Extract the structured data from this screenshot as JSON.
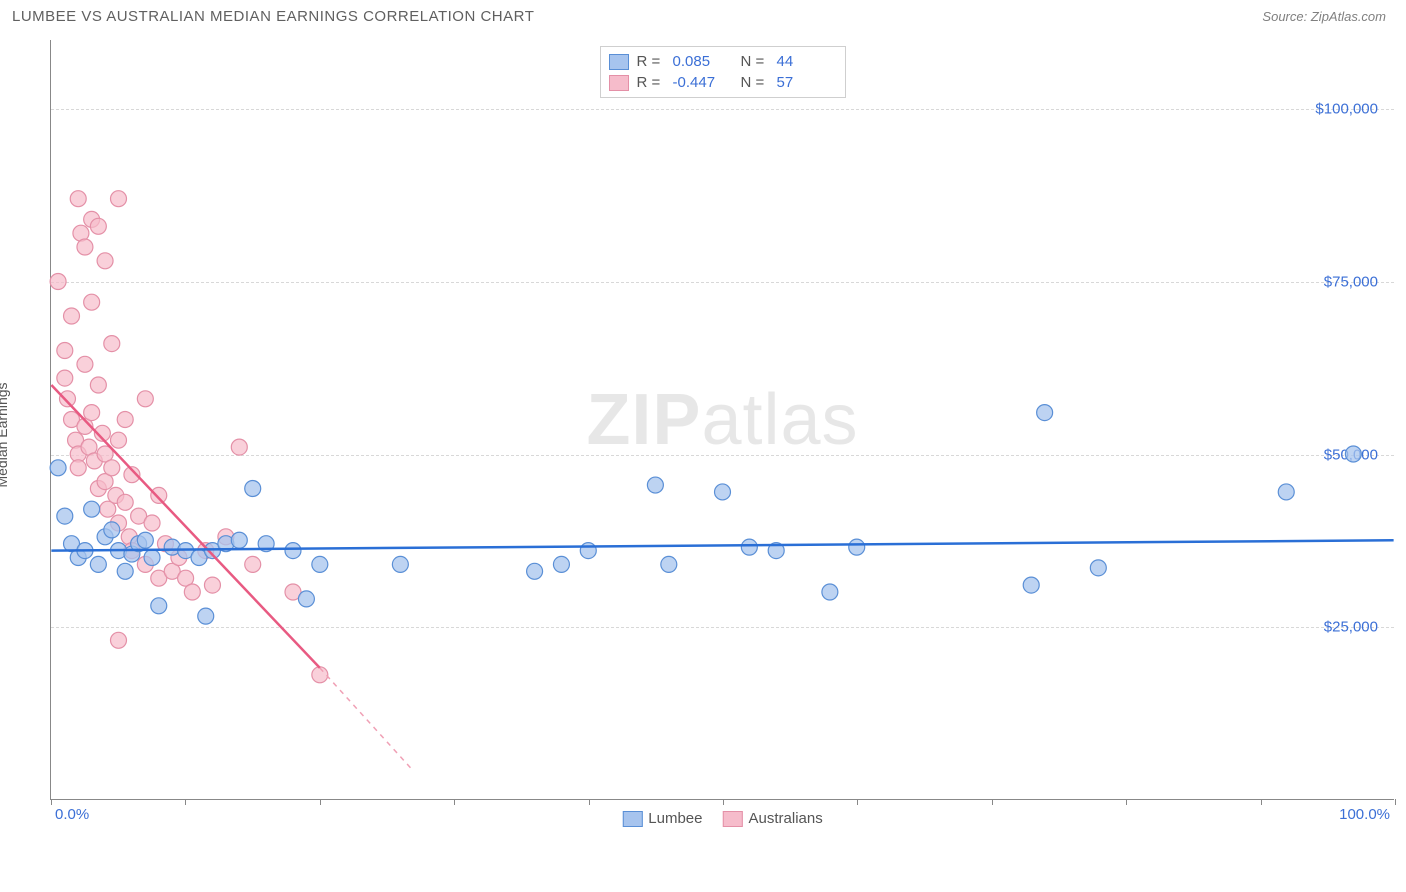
{
  "header": {
    "title": "LUMBEE VS AUSTRALIAN MEDIAN EARNINGS CORRELATION CHART",
    "source_label": "Source:",
    "source_value": "ZipAtlas.com"
  },
  "watermark": {
    "part1": "ZIP",
    "part2": "atlas"
  },
  "chart": {
    "type": "scatter",
    "ylabel": "Median Earnings",
    "background_color": "#ffffff",
    "grid_color": "#d8d8d8",
    "axis_color": "#888888",
    "xlim": [
      0,
      100
    ],
    "ylim": [
      0,
      110000
    ],
    "x_ticks_pct": [
      0,
      10,
      20,
      30,
      40,
      50,
      60,
      70,
      80,
      90,
      100
    ],
    "x_tick_labels": {
      "left": "0.0%",
      "right": "100.0%"
    },
    "y_gridlines": [
      25000,
      50000,
      75000,
      100000
    ],
    "y_tick_labels": [
      "$25,000",
      "$50,000",
      "$75,000",
      "$100,000"
    ],
    "legend_top": [
      {
        "swatch_fill": "#a7c4ee",
        "swatch_border": "#5a8fd6",
        "r_label": "R =",
        "r_value": "0.085",
        "n_label": "N =",
        "n_value": "44"
      },
      {
        "swatch_fill": "#f6bccb",
        "swatch_border": "#e490a7",
        "r_label": "R =",
        "r_value": "-0.447",
        "n_label": "N =",
        "n_value": "57"
      }
    ],
    "legend_bottom": [
      {
        "swatch_fill": "#a7c4ee",
        "swatch_border": "#5a8fd6",
        "label": "Lumbee"
      },
      {
        "swatch_fill": "#f6bccb",
        "swatch_border": "#e490a7",
        "label": "Australians"
      }
    ],
    "series": {
      "lumbee": {
        "marker_fill": "#a7c4ee",
        "marker_stroke": "#5a8fd6",
        "marker_r": 8,
        "marker_opacity": 0.75,
        "line_color": "#2a6fd6",
        "line_width": 2.5,
        "trend": {
          "x1": 0,
          "y1": 36000,
          "x2": 100,
          "y2": 37500
        },
        "points": [
          [
            0.5,
            48000
          ],
          [
            1,
            41000
          ],
          [
            1.5,
            37000
          ],
          [
            2,
            35000
          ],
          [
            2.5,
            36000
          ],
          [
            3,
            42000
          ],
          [
            3.5,
            34000
          ],
          [
            4,
            38000
          ],
          [
            4.5,
            39000
          ],
          [
            5,
            36000
          ],
          [
            5.5,
            33000
          ],
          [
            6,
            35500
          ],
          [
            6.5,
            37000
          ],
          [
            7,
            37500
          ],
          [
            7.5,
            35000
          ],
          [
            8,
            28000
          ],
          [
            9,
            36500
          ],
          [
            10,
            36000
          ],
          [
            11,
            35000
          ],
          [
            11.5,
            26500
          ],
          [
            12,
            36000
          ],
          [
            13,
            37000
          ],
          [
            14,
            37500
          ],
          [
            15,
            45000
          ],
          [
            16,
            37000
          ],
          [
            18,
            36000
          ],
          [
            19,
            29000
          ],
          [
            20,
            34000
          ],
          [
            26,
            34000
          ],
          [
            36,
            33000
          ],
          [
            38,
            34000
          ],
          [
            40,
            36000
          ],
          [
            45,
            45500
          ],
          [
            46,
            34000
          ],
          [
            50,
            44500
          ],
          [
            52,
            36500
          ],
          [
            54,
            36000
          ],
          [
            58,
            30000
          ],
          [
            60,
            36500
          ],
          [
            74,
            56000
          ],
          [
            73,
            31000
          ],
          [
            78,
            33500
          ],
          [
            92,
            44500
          ],
          [
            97,
            50000
          ]
        ]
      },
      "australians": {
        "marker_fill": "#f6bccb",
        "marker_stroke": "#e490a7",
        "marker_r": 8,
        "marker_opacity": 0.7,
        "line_color": "#e85a82",
        "line_width": 2.5,
        "dash_color": "#f0a0b5",
        "trend": {
          "x1": 0,
          "y1": 60000,
          "x2": 20,
          "y2": 19000
        },
        "trend_dash": {
          "x1": 20,
          "y1": 19000,
          "x2": 27,
          "y2": 4000
        },
        "points": [
          [
            0.5,
            75000
          ],
          [
            1,
            65000
          ],
          [
            1,
            61000
          ],
          [
            1.2,
            58000
          ],
          [
            1.5,
            70000
          ],
          [
            1.5,
            55000
          ],
          [
            1.8,
            52000
          ],
          [
            2,
            87000
          ],
          [
            2,
            50000
          ],
          [
            2,
            48000
          ],
          [
            2.2,
            82000
          ],
          [
            2.5,
            80000
          ],
          [
            2.5,
            63000
          ],
          [
            2.5,
            54000
          ],
          [
            2.8,
            51000
          ],
          [
            3,
            84000
          ],
          [
            3,
            72000
          ],
          [
            3,
            56000
          ],
          [
            3.2,
            49000
          ],
          [
            3.5,
            83000
          ],
          [
            3.5,
            60000
          ],
          [
            3.5,
            45000
          ],
          [
            3.8,
            53000
          ],
          [
            4,
            78000
          ],
          [
            4,
            50000
          ],
          [
            4,
            46000
          ],
          [
            4.2,
            42000
          ],
          [
            4.5,
            66000
          ],
          [
            4.5,
            48000
          ],
          [
            4.8,
            44000
          ],
          [
            5,
            87000
          ],
          [
            5,
            52000
          ],
          [
            5,
            40000
          ],
          [
            5.5,
            55000
          ],
          [
            5.5,
            43000
          ],
          [
            5.8,
            38000
          ],
          [
            6,
            47000
          ],
          [
            6,
            36000
          ],
          [
            6.5,
            41000
          ],
          [
            7,
            58000
          ],
          [
            7,
            34000
          ],
          [
            7.5,
            40000
          ],
          [
            8,
            44000
          ],
          [
            8,
            32000
          ],
          [
            8.5,
            37000
          ],
          [
            9,
            33000
          ],
          [
            9.5,
            35000
          ],
          [
            10,
            32000
          ],
          [
            10.5,
            30000
          ],
          [
            11.5,
            36000
          ],
          [
            12,
            31000
          ],
          [
            13,
            38000
          ],
          [
            14,
            51000
          ],
          [
            15,
            34000
          ],
          [
            5,
            23000
          ],
          [
            18,
            30000
          ],
          [
            20,
            18000
          ]
        ]
      }
    }
  }
}
